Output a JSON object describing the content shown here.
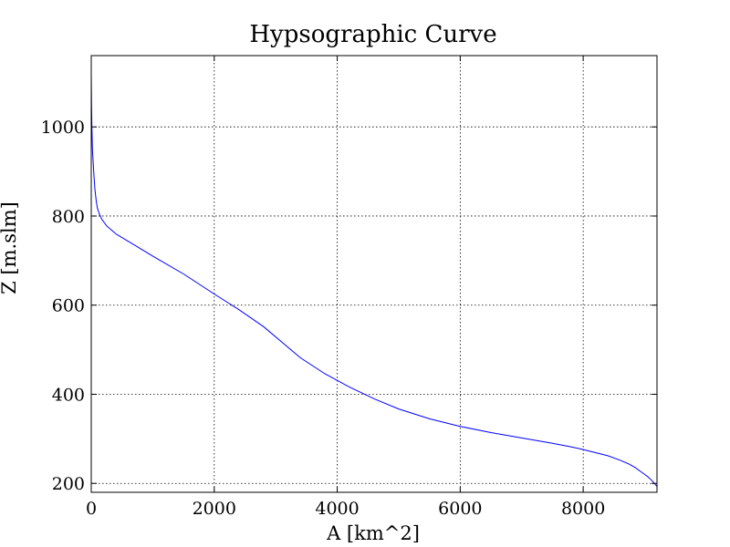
{
  "chart_data": {
    "type": "line",
    "title": "Hypsographic Curve",
    "xlabel": "A [km^2]",
    "ylabel": "Z [m.slm]",
    "xlim": [
      0,
      9200
    ],
    "ylim": [
      180,
      1160
    ],
    "xticks": [
      0,
      2000,
      4000,
      6000,
      8000
    ],
    "yticks": [
      200,
      400,
      600,
      800,
      1000
    ],
    "grid": true,
    "line_color": "#0000ff",
    "series": [
      {
        "name": "",
        "x": [
          0,
          5,
          10,
          20,
          40,
          60,
          80,
          100,
          130,
          170,
          250,
          400,
          700,
          1000,
          1500,
          2000,
          2400,
          2800,
          3100,
          3400,
          3800,
          4200,
          4600,
          5000,
          5500,
          6000,
          6500,
          7000,
          7500,
          7800,
          8000,
          8200,
          8400,
          8600,
          8750,
          8850,
          8950,
          9050,
          9120,
          9200
        ],
        "y": [
          1120,
          1050,
          1000,
          950,
          900,
          860,
          835,
          818,
          805,
          793,
          778,
          760,
          735,
          710,
          670,
          625,
          590,
          552,
          517,
          482,
          446,
          416,
          390,
          367,
          345,
          328,
          314,
          302,
          290,
          282,
          276,
          269,
          262,
          252,
          243,
          235,
          225,
          215,
          206,
          193
        ]
      }
    ]
  }
}
